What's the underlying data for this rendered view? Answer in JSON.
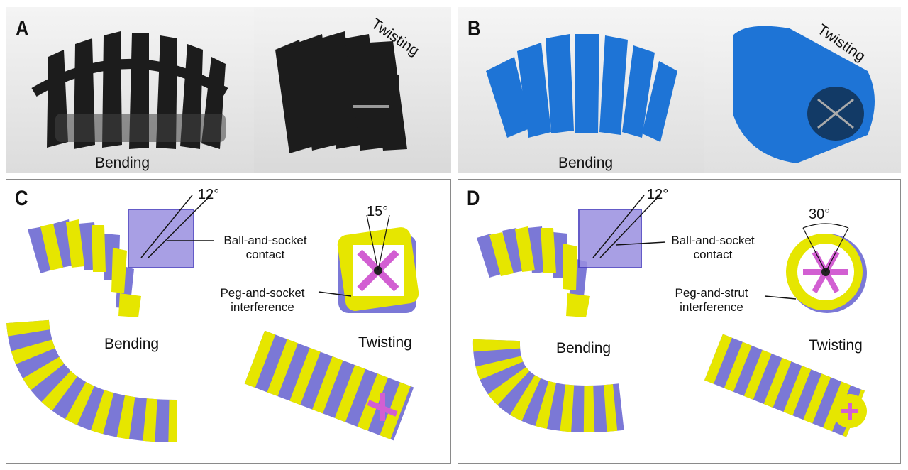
{
  "panels": {
    "A": {
      "letter": "A",
      "bending": "Bending",
      "twisting": "Twisting"
    },
    "B": {
      "letter": "B",
      "bending": "Bending",
      "twisting": "Twisting"
    },
    "C": {
      "letter": "C",
      "angle_1": "12°",
      "angle_2": "15°",
      "contact_label_1": "Ball-and-socket",
      "contact_label_2": "contact",
      "interference_label_1": "Peg-and-socket",
      "interference_label_2": "interference",
      "bending": "Bending",
      "twisting": "Twisting"
    },
    "D": {
      "letter": "D",
      "angle_1": "12°",
      "angle_2": "30°",
      "contact_label_1": "Ball-and-socket",
      "contact_label_2": "contact",
      "interference_label_1": "Peg-and-strut",
      "interference_label_2": "interference",
      "bending": "Bending",
      "twisting": "Twisting"
    }
  },
  "colors": {
    "black_part": "#1c1c1c",
    "blue_part": "#1e74d6",
    "yellow_part": "#e6e600",
    "purple_part": "#7b78d6",
    "magenta_part": "#d25fd2",
    "border": "#8a8a8a"
  }
}
